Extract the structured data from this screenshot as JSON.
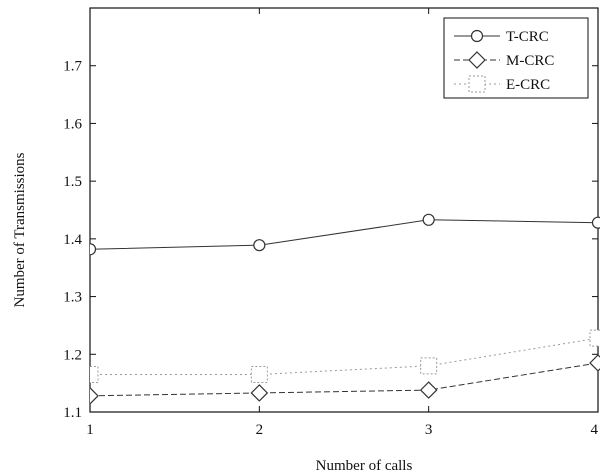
{
  "chart_data": {
    "type": "line",
    "title": "",
    "xlabel": "Number of calls",
    "ylabel": "Number of Transmissions",
    "x": [
      1,
      2,
      3,
      4
    ],
    "xticks": [
      "1",
      "2",
      "3",
      "4"
    ],
    "yticks": [
      "1.1",
      "1.2",
      "1.3",
      "1.4",
      "1.5",
      "1.6",
      "1.7"
    ],
    "xlim": [
      1,
      4
    ],
    "ylim": [
      1.1,
      1.8
    ],
    "grid": false,
    "legend_position": "top-right",
    "series": [
      {
        "name": "T-CRC",
        "marker": "circle",
        "line": "solid",
        "values": [
          1.382,
          1.389,
          1.433,
          1.428
        ]
      },
      {
        "name": "M-CRC",
        "marker": "diamond",
        "line": "dashed",
        "values": [
          1.128,
          1.133,
          1.138,
          1.185
        ]
      },
      {
        "name": "E-CRC",
        "marker": "square",
        "line": "dotted",
        "values": [
          1.165,
          1.165,
          1.18,
          1.228
        ]
      }
    ],
    "colors": {
      "ink": "#333333",
      "light": "#9a9a9a"
    }
  }
}
